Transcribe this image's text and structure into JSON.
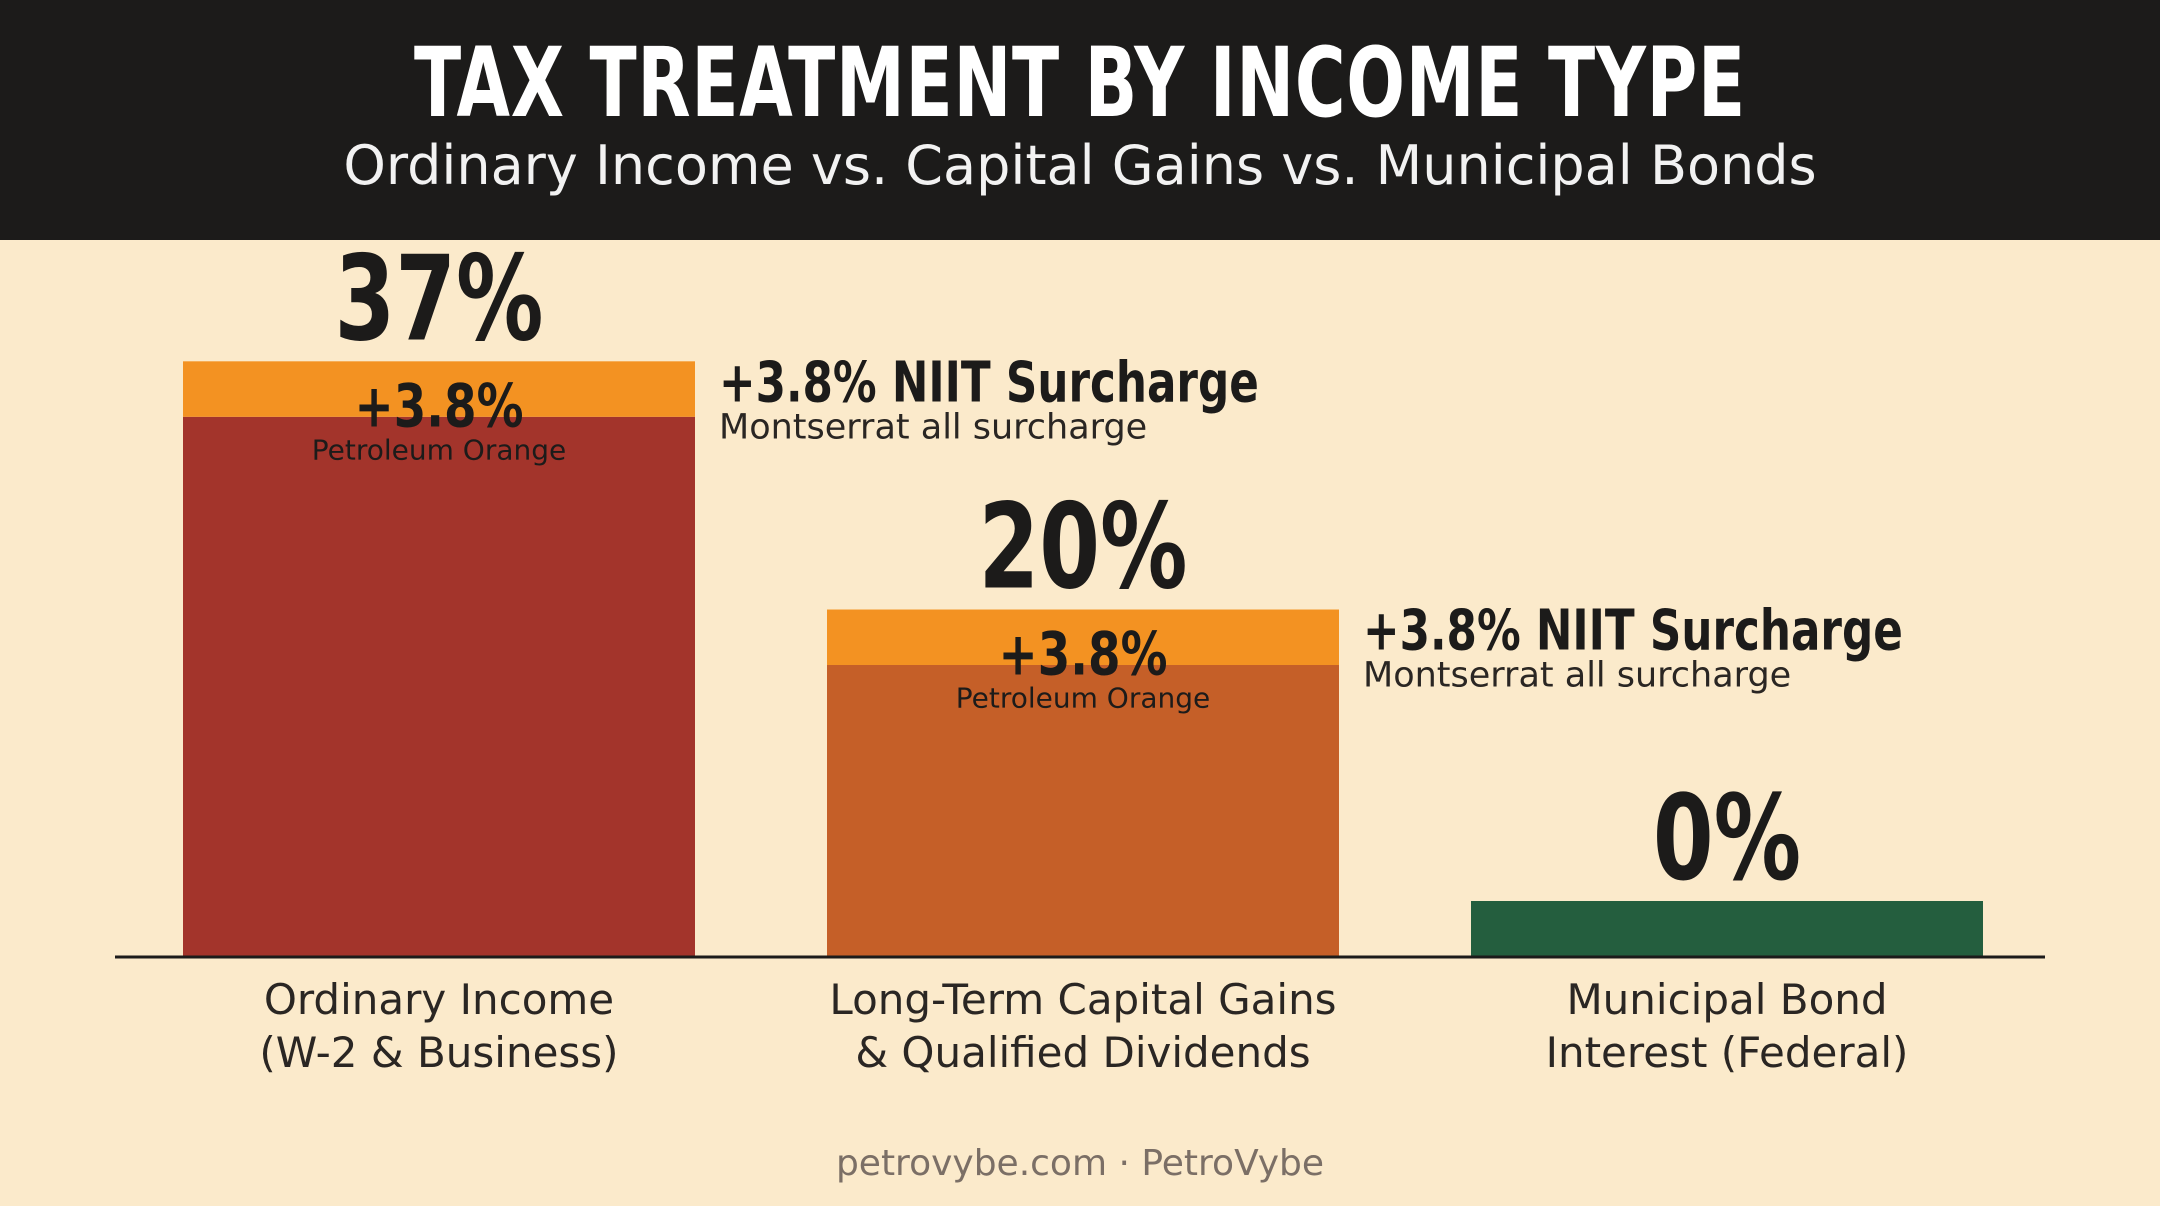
{
  "header": {
    "title": "TAX TREATMENT BY INCOME TYPE",
    "subtitle": "Ordinary Income vs. Capital Gains vs. Municipal Bonds"
  },
  "footer": {
    "text": "petrovybe.com · PetroVybe"
  },
  "chart_data": {
    "type": "bar",
    "title": "TAX TREATMENT BY INCOME TYPE",
    "subtitle": "Ordinary Income vs. Capital Gains vs. Municipal Bonds",
    "xlabel": "",
    "ylabel": "",
    "ylim": [
      0,
      45
    ],
    "grid": false,
    "categories": [
      [
        "Ordinary Income",
        "(W-2 & Business)"
      ],
      [
        "Long-Term Capital Gains",
        "& Qualified Dividends"
      ],
      [
        "Municipal Bond",
        "Interest (Federal)"
      ]
    ],
    "values": [
      37,
      20,
      0
    ],
    "value_labels": [
      "37%",
      "20%",
      "0%"
    ],
    "surcharge": [
      3.8,
      3.8,
      0
    ],
    "surcharge_labels": [
      "+3.8%",
      "+3.8%",
      ""
    ],
    "surcharge_sublabels": [
      "Petroleum Orange",
      "Petroleum Orange",
      ""
    ],
    "annotations": [
      {
        "bar": 0,
        "title": "+3.8% NIIT Surcharge",
        "text": "Montserrat all surcharge"
      },
      {
        "bar": 1,
        "title": "+3.8% NIIT Surcharge",
        "text": "Montserrat all surcharge"
      }
    ],
    "colors": {
      "bars": [
        "#a3342b",
        "#c55f28",
        "#245e3e"
      ],
      "surcharge": "#f39222",
      "text": "#1c1b1a",
      "axis": "#1c1b1a"
    }
  }
}
